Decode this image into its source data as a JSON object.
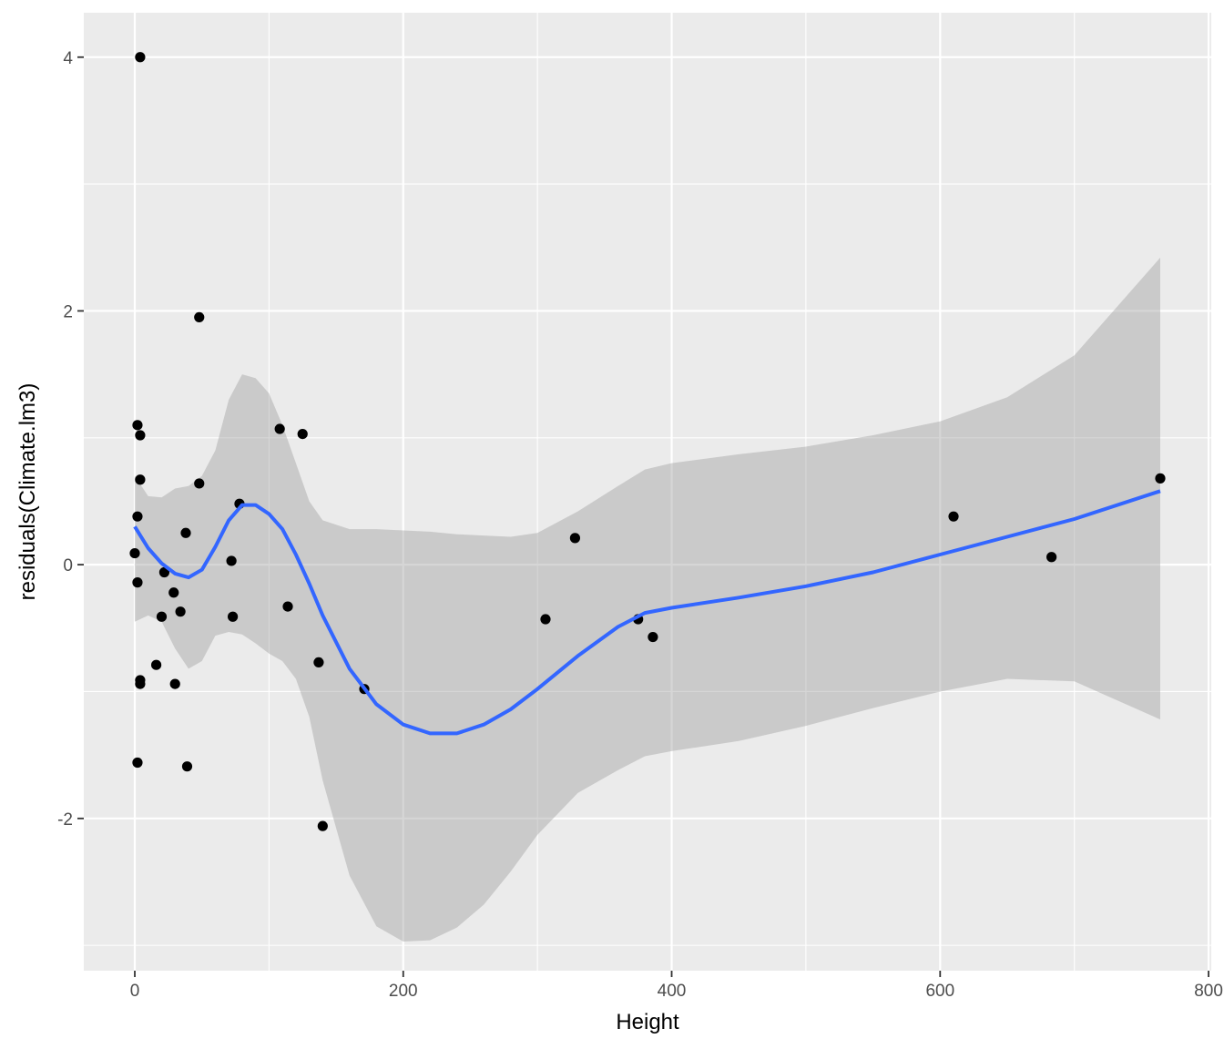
{
  "chart_data": {
    "type": "scatter",
    "title": "",
    "xlabel": "Height",
    "ylabel": "residuals(Climate.lm3)",
    "xlim": [
      -38,
      802
    ],
    "ylim": [
      -3.2,
      4.35
    ],
    "x_ticks": [
      0,
      200,
      400,
      600,
      800
    ],
    "y_ticks": [
      -2,
      0,
      2,
      4
    ],
    "x_minor": [
      100,
      300,
      500,
      700
    ],
    "y_minor": [
      -3,
      -1,
      1,
      3
    ],
    "grid": true,
    "colors": {
      "panel": "#ebebeb",
      "grid": "#ffffff",
      "points": "#000000",
      "smooth": "#3366ff",
      "ribbon": "#999999"
    },
    "points": [
      {
        "x": 4,
        "y": 4.0
      },
      {
        "x": 48,
        "y": 1.95
      },
      {
        "x": 2,
        "y": 1.1
      },
      {
        "x": 4,
        "y": 1.02
      },
      {
        "x": 108,
        "y": 1.07
      },
      {
        "x": 125,
        "y": 1.03
      },
      {
        "x": 4,
        "y": 0.67
      },
      {
        "x": 48,
        "y": 0.64
      },
      {
        "x": 78,
        "y": 0.48
      },
      {
        "x": 2,
        "y": 0.38
      },
      {
        "x": 38,
        "y": 0.25
      },
      {
        "x": 0,
        "y": 0.09
      },
      {
        "x": 72,
        "y": 0.03
      },
      {
        "x": 2,
        "y": -0.14
      },
      {
        "x": 22,
        "y": -0.06
      },
      {
        "x": 29,
        "y": -0.22
      },
      {
        "x": 34,
        "y": -0.37
      },
      {
        "x": 20,
        "y": -0.41
      },
      {
        "x": 73,
        "y": -0.41
      },
      {
        "x": 114,
        "y": -0.33
      },
      {
        "x": 16,
        "y": -0.79
      },
      {
        "x": 4,
        "y": -0.91
      },
      {
        "x": 4,
        "y": -0.94
      },
      {
        "x": 30,
        "y": -0.94
      },
      {
        "x": 137,
        "y": -0.77
      },
      {
        "x": 171,
        "y": -0.98
      },
      {
        "x": 2,
        "y": -1.56
      },
      {
        "x": 39,
        "y": -1.59
      },
      {
        "x": 140,
        "y": -2.06
      },
      {
        "x": 306,
        "y": -0.43
      },
      {
        "x": 328,
        "y": 0.21
      },
      {
        "x": 375,
        "y": -0.43
      },
      {
        "x": 386,
        "y": -0.57
      },
      {
        "x": 610,
        "y": 0.38
      },
      {
        "x": 683,
        "y": 0.06
      },
      {
        "x": 764,
        "y": 0.68
      }
    ],
    "smooth": {
      "x": [
        0,
        10,
        20,
        30,
        40,
        50,
        60,
        70,
        80,
        90,
        100,
        110,
        120,
        130,
        140,
        160,
        180,
        200,
        220,
        240,
        260,
        280,
        300,
        330,
        360,
        380,
        400,
        450,
        500,
        550,
        600,
        650,
        700,
        764
      ],
      "y": [
        0.3,
        0.13,
        0.01,
        -0.07,
        -0.1,
        -0.04,
        0.14,
        0.35,
        0.47,
        0.47,
        0.4,
        0.28,
        0.08,
        -0.15,
        -0.4,
        -0.82,
        -1.1,
        -1.26,
        -1.33,
        -1.33,
        -1.26,
        -1.14,
        -0.98,
        -0.72,
        -0.49,
        -0.38,
        -0.34,
        -0.26,
        -0.17,
        -0.06,
        0.08,
        0.22,
        0.36,
        0.58
      ],
      "upper": [
        0.7,
        0.54,
        0.53,
        0.6,
        0.62,
        0.7,
        0.9,
        1.3,
        1.5,
        1.47,
        1.35,
        1.1,
        0.8,
        0.5,
        0.35,
        0.28,
        0.28,
        0.27,
        0.26,
        0.24,
        0.23,
        0.22,
        0.25,
        0.42,
        0.62,
        0.75,
        0.8,
        0.87,
        0.93,
        1.02,
        1.13,
        1.32,
        1.65,
        2.42
      ],
      "lower": [
        -0.45,
        -0.4,
        -0.45,
        -0.66,
        -0.82,
        -0.76,
        -0.56,
        -0.53,
        -0.55,
        -0.62,
        -0.7,
        -0.76,
        -0.9,
        -1.2,
        -1.7,
        -2.45,
        -2.85,
        -2.97,
        -2.96,
        -2.86,
        -2.68,
        -2.42,
        -2.13,
        -1.8,
        -1.62,
        -1.51,
        -1.47,
        -1.39,
        -1.27,
        -1.13,
        -1.0,
        -0.9,
        -0.92,
        -1.22
      ]
    }
  }
}
